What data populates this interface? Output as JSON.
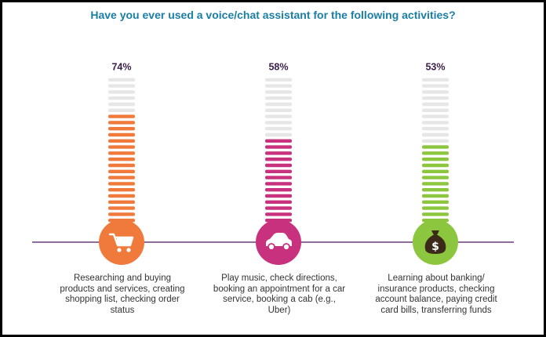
{
  "chart_data": {
    "type": "bar",
    "title": "Have you ever used a voice/chat assistant for the following activities?",
    "ylim": [
      0,
      100
    ],
    "categories": [
      "Researching and buying products and services, creating shopping list, checking order status",
      "Play music, check directions, booking an appointment for a car service, booking a cab (e.g., Uber)",
      "Learning about banking/ insurance products, checking account balance, paying credit card bills, transferring funds"
    ],
    "values": [
      74,
      58,
      53
    ],
    "value_labels": [
      "74%",
      "58%",
      "53%"
    ],
    "colors": [
      "#f07a3c",
      "#c8317d",
      "#8cc63e"
    ],
    "empty_color": "#e6e6e6",
    "baseline_color": "#6b3a7a",
    "icons": [
      "shopping-cart-icon",
      "car-icon",
      "money-bag-icon"
    ]
  }
}
